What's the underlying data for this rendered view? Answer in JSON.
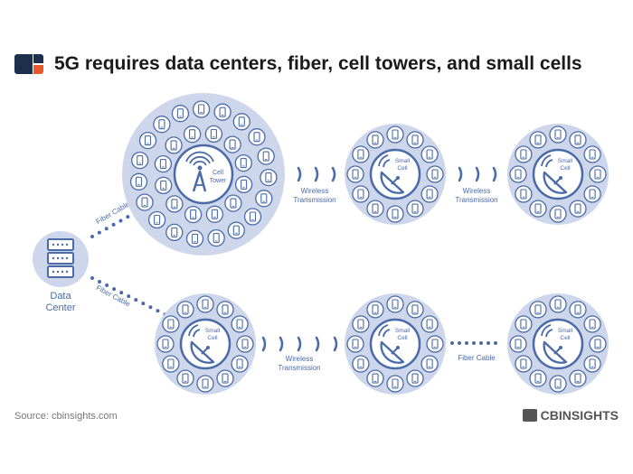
{
  "header": {
    "title": "5G requires data centers, fiber, cell towers, and small cells"
  },
  "nodes": {
    "data_center": [
      "Data",
      "Center"
    ],
    "cell_tower": [
      "Cell",
      "Tower"
    ],
    "small_cell": [
      "Small",
      "Cell"
    ]
  },
  "links": {
    "fiber": "Fiber Cable",
    "wireless": [
      "Wireless",
      "Transmission"
    ]
  },
  "footer": {
    "source": "Source: cbinsights.com",
    "brand": "CBINSIGHTS"
  },
  "colors": {
    "accent": "#4a6aa8",
    "circle_fill": "#cdd6ea",
    "logo_dark": "#1c2f4d",
    "logo_orange": "#e8582a"
  }
}
